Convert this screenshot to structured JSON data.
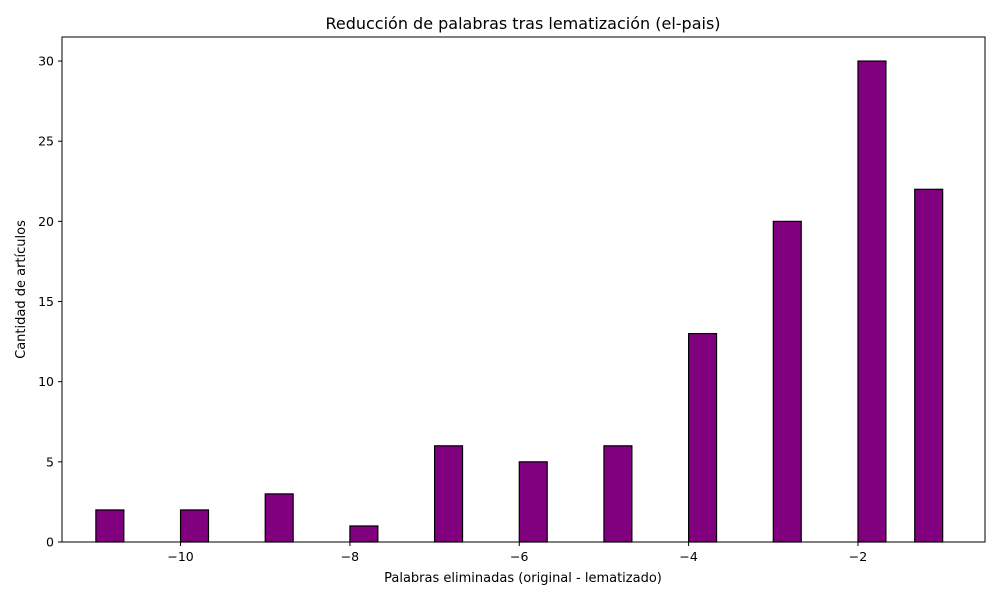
{
  "chart_data": {
    "type": "bar",
    "title": "Reducción de palabras tras lematización (el-pais)",
    "xlabel": "Palabras eliminadas (original - lematizado)",
    "ylabel": "Cantidad de artículos",
    "xlim": [
      -11.4,
      -0.5
    ],
    "ylim": [
      0,
      31.5
    ],
    "xticks": [
      -10,
      -8,
      -6,
      -4,
      -2
    ],
    "xtick_labels": [
      "−10",
      "−8",
      "−6",
      "−4",
      "−2"
    ],
    "yticks": [
      0,
      5,
      10,
      15,
      20,
      25,
      30
    ],
    "bar_width": 0.33,
    "bars": [
      {
        "x": -11,
        "value": 2
      },
      {
        "x": -10,
        "value": 2
      },
      {
        "x": -9,
        "value": 3
      },
      {
        "x": -8,
        "value": 1
      },
      {
        "x": -7,
        "value": 6
      },
      {
        "x": -6,
        "value": 5
      },
      {
        "x": -5,
        "value": 6
      },
      {
        "x": -4,
        "value": 13
      },
      {
        "x": -3,
        "value": 20
      },
      {
        "x": -2,
        "value": 30
      },
      {
        "x": -1.33,
        "value": 22
      }
    ],
    "bar_color": "#800080",
    "edge_color": "#000000",
    "grid": false
  }
}
